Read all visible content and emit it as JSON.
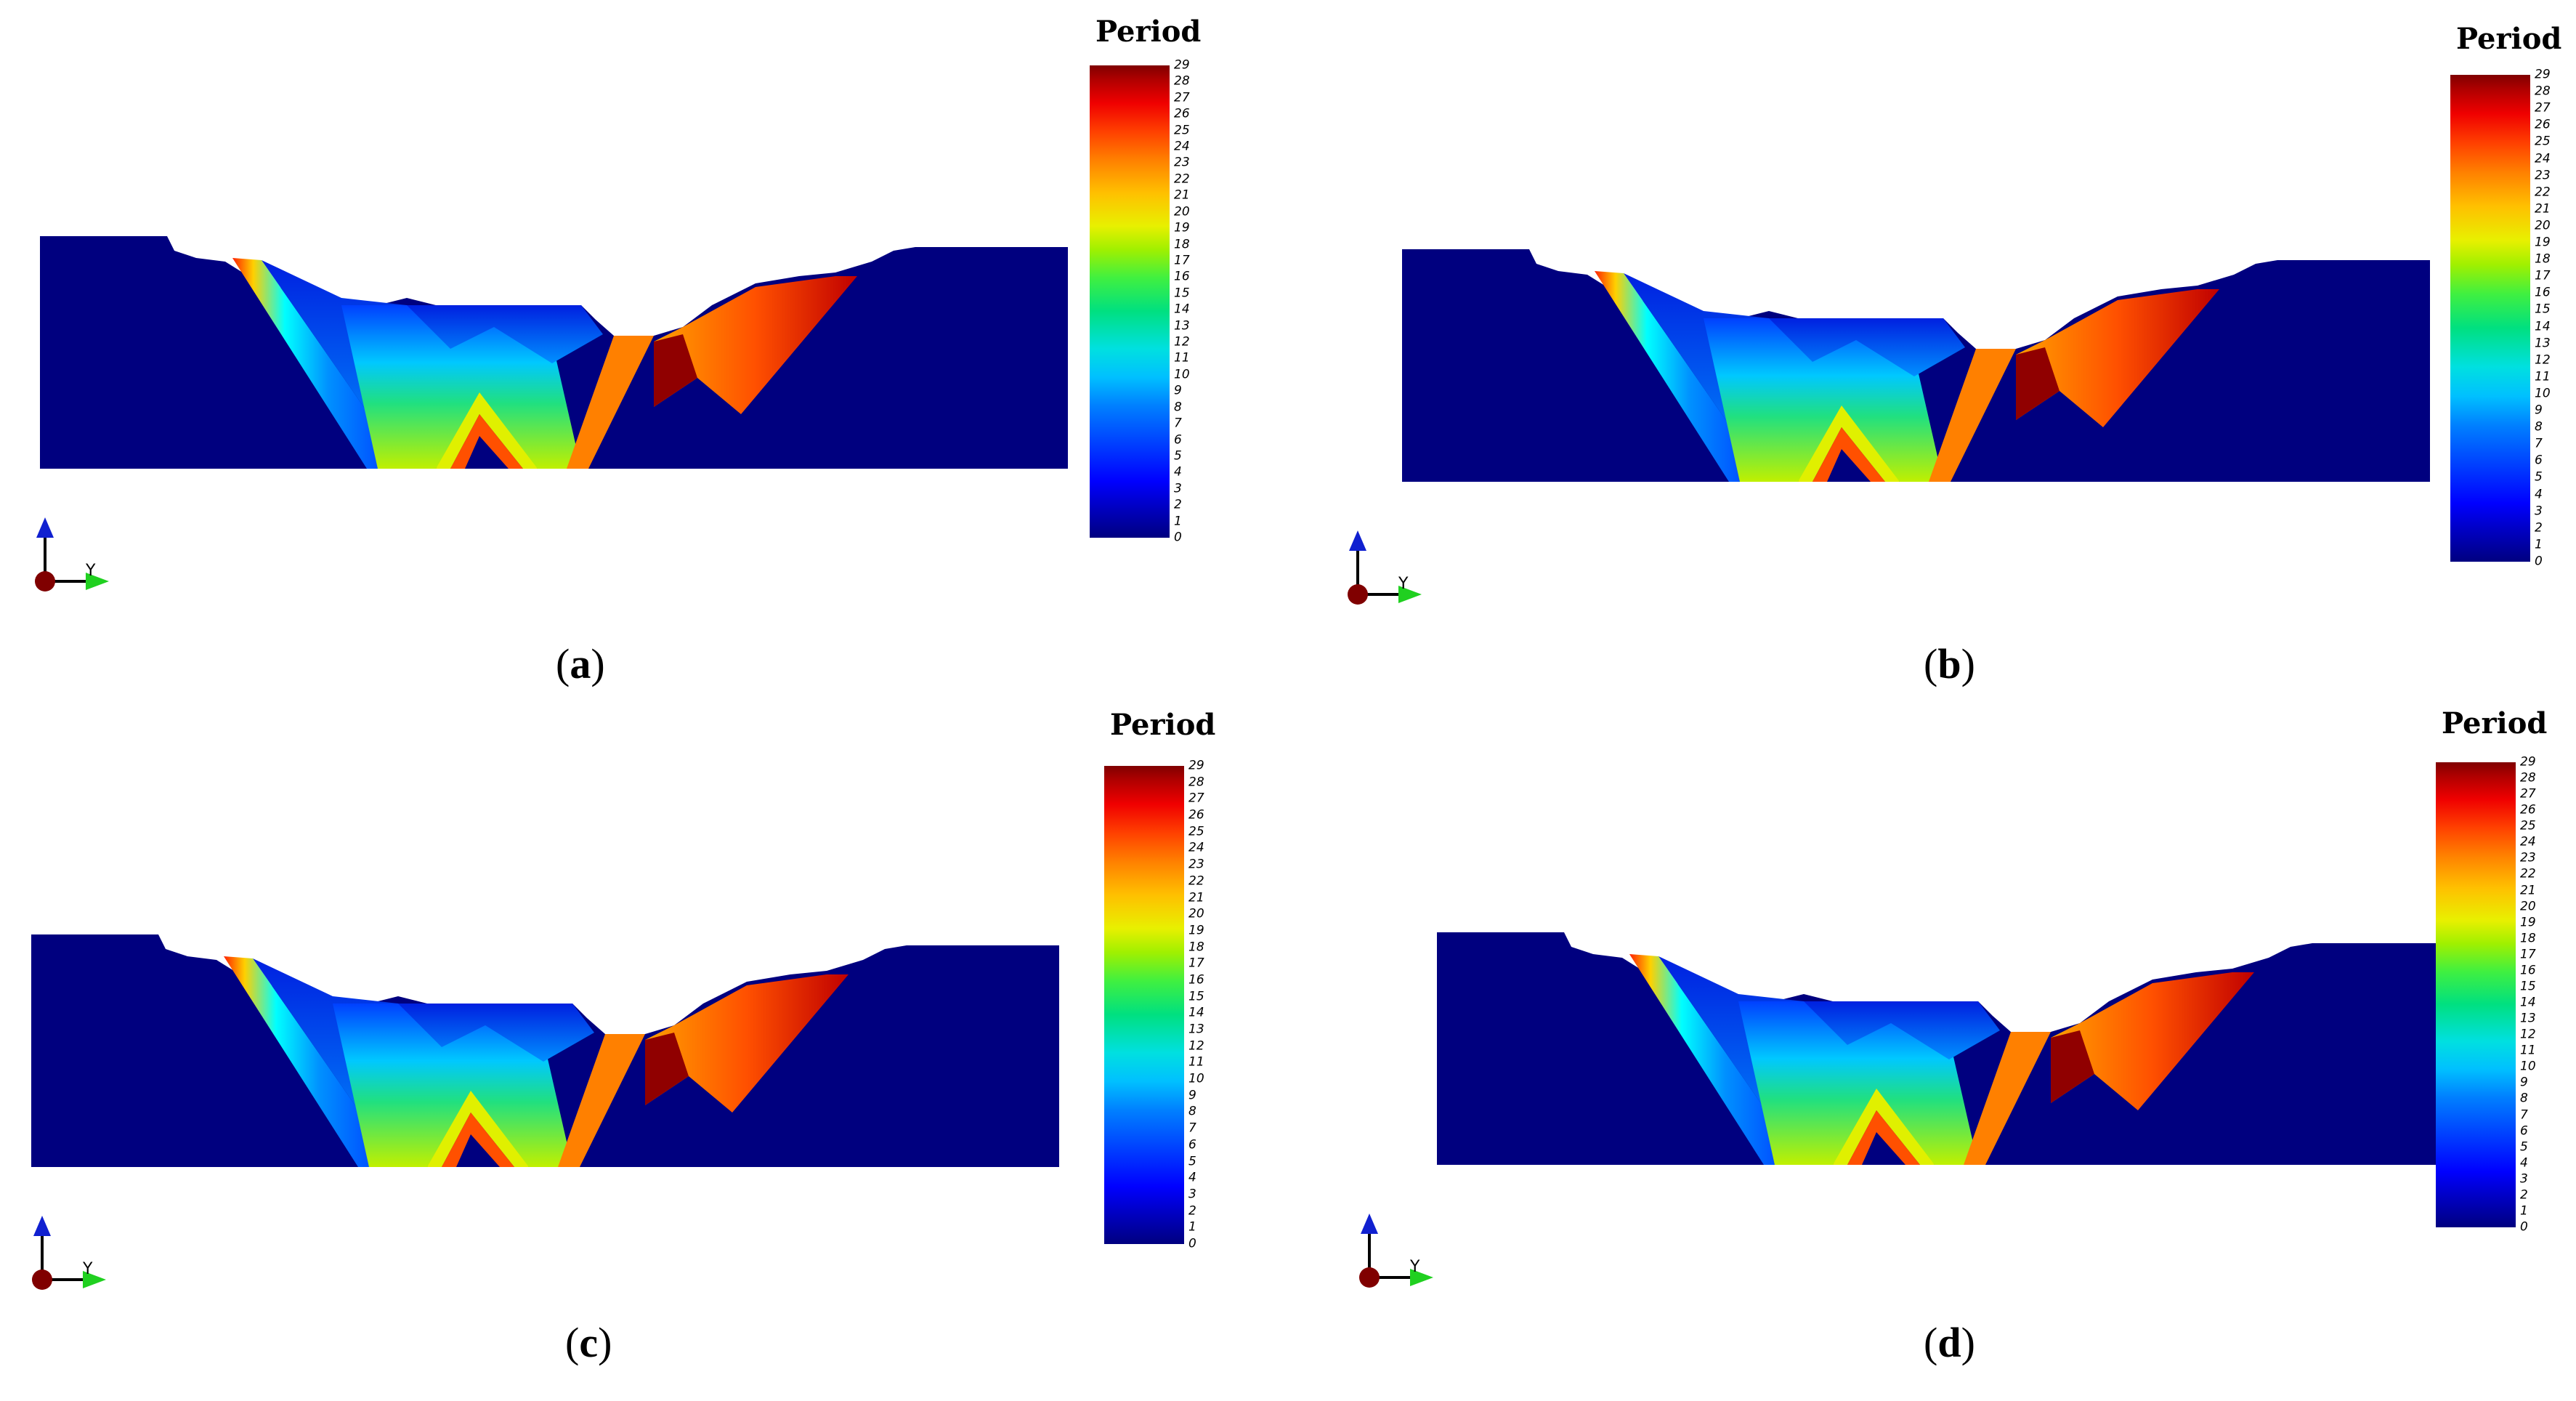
{
  "legend": {
    "title": "Period",
    "ticks": [
      "0",
      "1",
      "2",
      "3",
      "4",
      "5",
      "6",
      "7",
      "8",
      "9",
      "10",
      "11",
      "12",
      "13",
      "14",
      "15",
      "16",
      "17",
      "18",
      "19",
      "20",
      "21",
      "22",
      "23",
      "24",
      "25",
      "26",
      "27",
      "28",
      "29"
    ],
    "min": 0,
    "max": 29
  },
  "axes_triad": {
    "y_label": "Y"
  },
  "panels": [
    {
      "id": "a",
      "caption_open": "(",
      "caption_letter": "a",
      "caption_close": ")"
    },
    {
      "id": "b",
      "caption_open": "(",
      "caption_letter": "b",
      "caption_close": ")"
    },
    {
      "id": "c",
      "caption_open": "(",
      "caption_letter": "c",
      "caption_close": ")"
    },
    {
      "id": "d",
      "caption_open": "(",
      "caption_letter": "d",
      "caption_close": ")"
    }
  ],
  "colors": {
    "background_rock": "#00007f",
    "colormap": "jet"
  }
}
